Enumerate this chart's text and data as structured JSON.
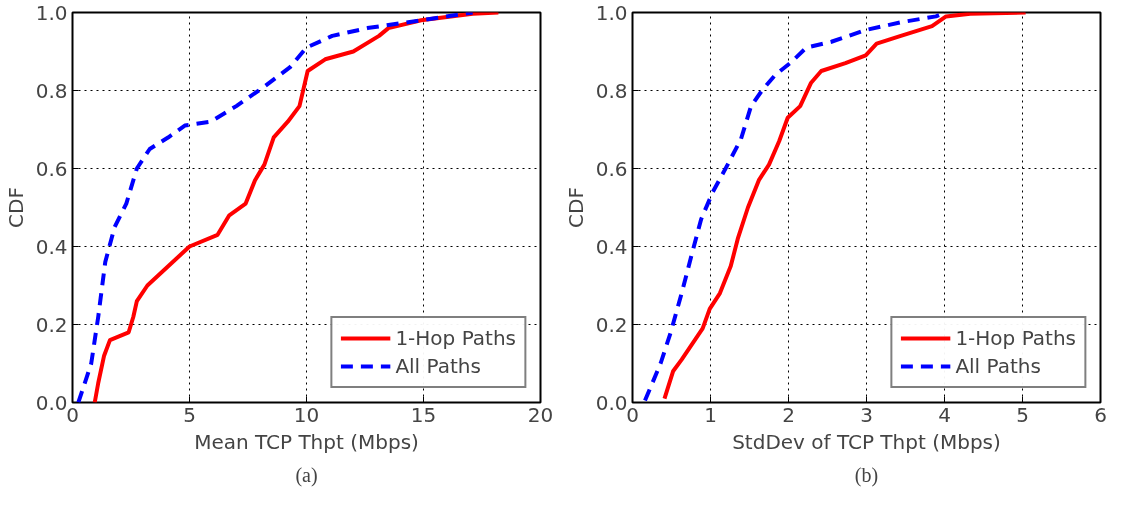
{
  "chart_data": [
    {
      "type": "line",
      "xlabel": "Mean TCP Thpt (Mbps)",
      "ylabel": "CDF",
      "annotations": [
        "(a)"
      ],
      "xlim": [
        0,
        20
      ],
      "xticks": [
        0,
        5,
        10,
        15,
        20
      ],
      "ylim": [
        0,
        1
      ],
      "yticks": [
        {
          "value": 0,
          "label": "0.0"
        },
        {
          "value": 0.2,
          "label": "0.2"
        },
        {
          "value": 0.4,
          "label": "0.4"
        },
        {
          "value": 0.6,
          "label": "0.6"
        },
        {
          "value": 0.8,
          "label": "0.8"
        },
        {
          "value": 1,
          "label": "1.0"
        }
      ],
      "grid": true,
      "legend": "bottom right",
      "series": [
        {
          "name": "1-Hop Paths",
          "color": "#ff0000",
          "line_style": "solid",
          "x": [
            0.95,
            1.1,
            1.35,
            1.6,
            2.4,
            2.6,
            2.75,
            3.2,
            4.1,
            5.0,
            6.2,
            6.7,
            7.4,
            7.8,
            8.2,
            8.6,
            9.2,
            9.7,
            10.05,
            10.8,
            12.0,
            13.1,
            13.5,
            14.9,
            17.1,
            18.2
          ],
          "values": [
            0,
            0.05,
            0.12,
            0.16,
            0.18,
            0.22,
            0.26,
            0.3,
            0.35,
            0.4,
            0.43,
            0.48,
            0.51,
            0.57,
            0.61,
            0.68,
            0.72,
            0.76,
            0.85,
            0.88,
            0.9,
            0.94,
            0.96,
            0.98,
            0.997,
            1.0
          ]
        },
        {
          "name": "All Paths",
          "color": "#0000ff",
          "line_style": "dashed",
          "x": [
            0.25,
            0.8,
            1.1,
            1.4,
            1.8,
            2.3,
            2.75,
            3.3,
            4.1,
            4.8,
            5.9,
            7.0,
            8.2,
            9.3,
            10.0,
            11.1,
            12.6,
            14.9,
            17.1
          ],
          "values": [
            0,
            0.1,
            0.22,
            0.36,
            0.45,
            0.51,
            0.6,
            0.65,
            0.68,
            0.71,
            0.72,
            0.76,
            0.81,
            0.86,
            0.91,
            0.94,
            0.96,
            0.98,
            1.0
          ]
        }
      ]
    },
    {
      "type": "line",
      "xlabel": "StdDev of TCP Thpt (Mbps)",
      "ylabel": "CDF",
      "annotations": [
        "(b)"
      ],
      "xlim": [
        0,
        6
      ],
      "xticks": [
        0,
        1,
        2,
        3,
        4,
        5,
        6
      ],
      "ylim": [
        0,
        1
      ],
      "yticks": [
        {
          "value": 0,
          "label": "0.0"
        },
        {
          "value": 0.2,
          "label": "0.2"
        },
        {
          "value": 0.4,
          "label": "0.4"
        },
        {
          "value": 0.6,
          "label": "0.6"
        },
        {
          "value": 0.8,
          "label": "0.8"
        },
        {
          "value": 1,
          "label": "1.0"
        }
      ],
      "grid": true,
      "legend": "bottom right",
      "series": [
        {
          "name": "1-Hop Paths",
          "color": "#ff0000",
          "line_style": "solid",
          "x": [
            0.41,
            0.52,
            0.63,
            0.9,
            0.99,
            1.12,
            1.26,
            1.35,
            1.48,
            1.62,
            1.75,
            1.88,
            1.99,
            2.15,
            2.29,
            2.42,
            2.73,
            2.99,
            3.13,
            3.44,
            3.84,
            4.02,
            4.33,
            5.04
          ],
          "values": [
            0.01,
            0.08,
            0.11,
            0.19,
            0.24,
            0.28,
            0.35,
            0.42,
            0.5,
            0.57,
            0.61,
            0.67,
            0.73,
            0.76,
            0.82,
            0.85,
            0.87,
            0.89,
            0.92,
            0.94,
            0.965,
            0.99,
            0.997,
            1.0
          ]
        },
        {
          "name": "All Paths",
          "color": "#0000ff",
          "line_style": "dashed",
          "x": [
            0.16,
            0.36,
            0.49,
            0.63,
            0.76,
            0.88,
            1.03,
            1.22,
            1.39,
            1.52,
            1.66,
            1.83,
            2.02,
            2.23,
            2.55,
            2.99,
            3.44,
            3.89,
            4.02
          ],
          "values": [
            0.005,
            0.1,
            0.18,
            0.28,
            0.38,
            0.47,
            0.54,
            0.61,
            0.675,
            0.76,
            0.8,
            0.84,
            0.87,
            0.91,
            0.925,
            0.955,
            0.975,
            0.99,
            1.0
          ]
        }
      ]
    }
  ]
}
